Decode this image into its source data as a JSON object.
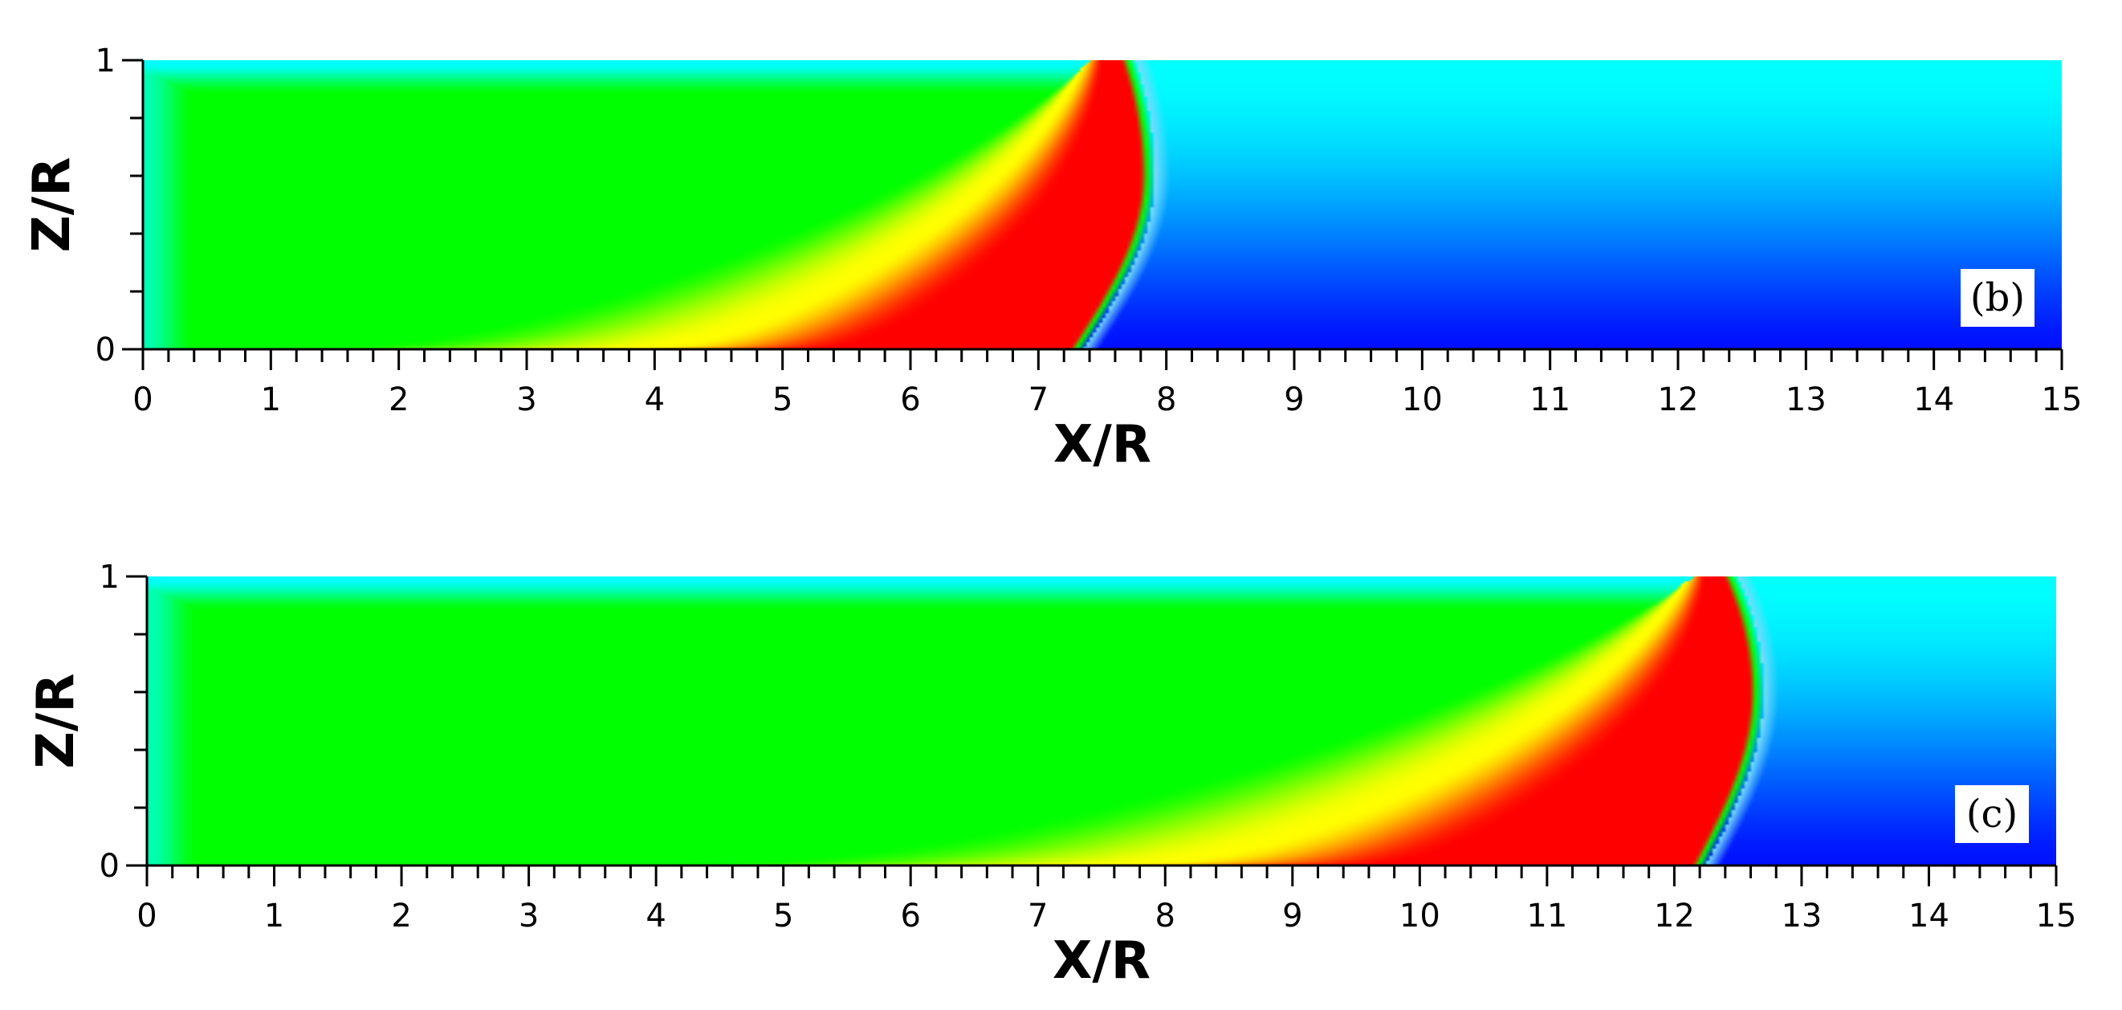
{
  "chart_data": [
    {
      "type": "heatmap",
      "panel_label": "(b)",
      "xlabel": "X/R",
      "ylabel": "Z/R",
      "xlim": [
        0,
        15
      ],
      "ylim": [
        0,
        1
      ],
      "x_major_ticks": [
        "0",
        "1",
        "2",
        "3",
        "4",
        "5",
        "6",
        "7",
        "8",
        "9",
        "10",
        "11",
        "12",
        "13",
        "14",
        "15"
      ],
      "x_minor_step": 0.2,
      "y_major_ticks": [
        "0",
        "1"
      ],
      "y_minor_step": 0.2,
      "grid": false,
      "legend": "none",
      "colormap": [
        "#0010ff",
        "#00ffff",
        "#00ff00",
        "#ffff00",
        "#ff0000"
      ],
      "field": {
        "front_x_at_z0": 7.3,
        "front_x_max": 7.85,
        "front_z_at_max": 0.6,
        "front_x_at_top": 7.7,
        "warm_start_x_at_z0": 1.2,
        "red_start_x_at_z0": 3.8
      }
    },
    {
      "type": "heatmap",
      "panel_label": "(c)",
      "xlabel": "X/R",
      "ylabel": "Z/R",
      "xlim": [
        0,
        15
      ],
      "ylim": [
        0,
        1
      ],
      "x_major_ticks": [
        "0",
        "1",
        "2",
        "3",
        "4",
        "5",
        "6",
        "7",
        "8",
        "9",
        "10",
        "11",
        "12",
        "13",
        "14",
        "15"
      ],
      "x_minor_step": 0.2,
      "y_major_ticks": [
        "0",
        "1"
      ],
      "y_minor_step": 0.2,
      "grid": false,
      "legend": "none",
      "colormap": [
        "#0010ff",
        "#00ffff",
        "#00ff00",
        "#ffff00",
        "#ff0000"
      ],
      "field": {
        "front_x_at_z0": 12.2,
        "front_x_max": 12.65,
        "front_z_at_max": 0.6,
        "front_x_at_top": 12.45,
        "warm_start_x_at_z0": 4.1,
        "red_start_x_at_z0": 7.6
      }
    }
  ]
}
